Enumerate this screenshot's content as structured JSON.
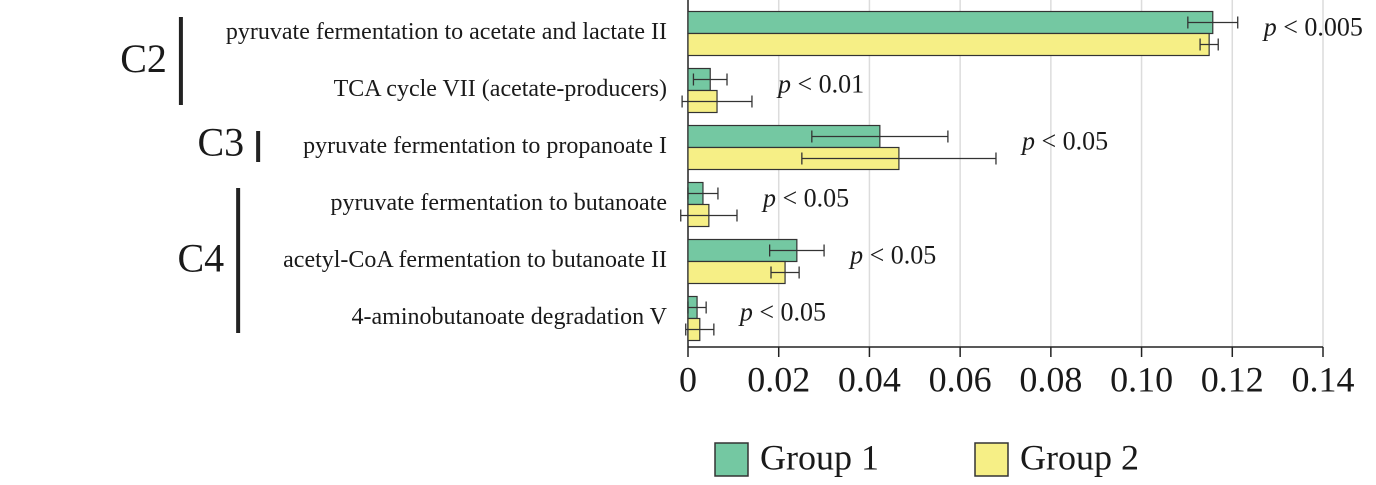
{
  "chart_data": {
    "type": "bar",
    "orientation": "horizontal",
    "categories": [
      "pyruvate fermentation to acetate and lactate II",
      "TCA cycle VII (acetate-producers)",
      "pyruvate fermentation to propanoate I",
      "pyruvate fermentation to butanoate",
      "acetyl-CoA fermentation to butanoate II",
      "4-aminobutanoate degradation V"
    ],
    "category_groups": [
      "C2",
      "C2",
      "C3",
      "C4",
      "C4",
      "C4"
    ],
    "series": [
      {
        "name": "Group 1",
        "color": "#74c8a2",
        "values": [
          0.1157,
          0.0049,
          0.0423,
          0.0033,
          0.024,
          0.002
        ],
        "errors": [
          0.0055,
          0.0037,
          0.015,
          0.0033,
          0.006,
          0.002
        ]
      },
      {
        "name": "Group 2",
        "color": "#f6ef86",
        "values": [
          0.1149,
          0.0064,
          0.0465,
          0.0046,
          0.0214,
          0.0026
        ],
        "errors": [
          0.002,
          0.0077,
          0.0214,
          0.0062,
          0.0031,
          0.0031
        ]
      }
    ],
    "annotations": [
      "p < 0.005",
      "p < 0.01",
      "p < 0.05",
      "p < 0.05",
      "p < 0.05",
      "p < 0.05"
    ],
    "xlim": [
      0,
      0.14
    ],
    "xticks": [
      0,
      0.02,
      0.04,
      0.06,
      0.08,
      {
        "value": 0.1,
        "label": "0.10"
      },
      0.12,
      0.14
    ],
    "grid": true,
    "legend": "bottom"
  }
}
